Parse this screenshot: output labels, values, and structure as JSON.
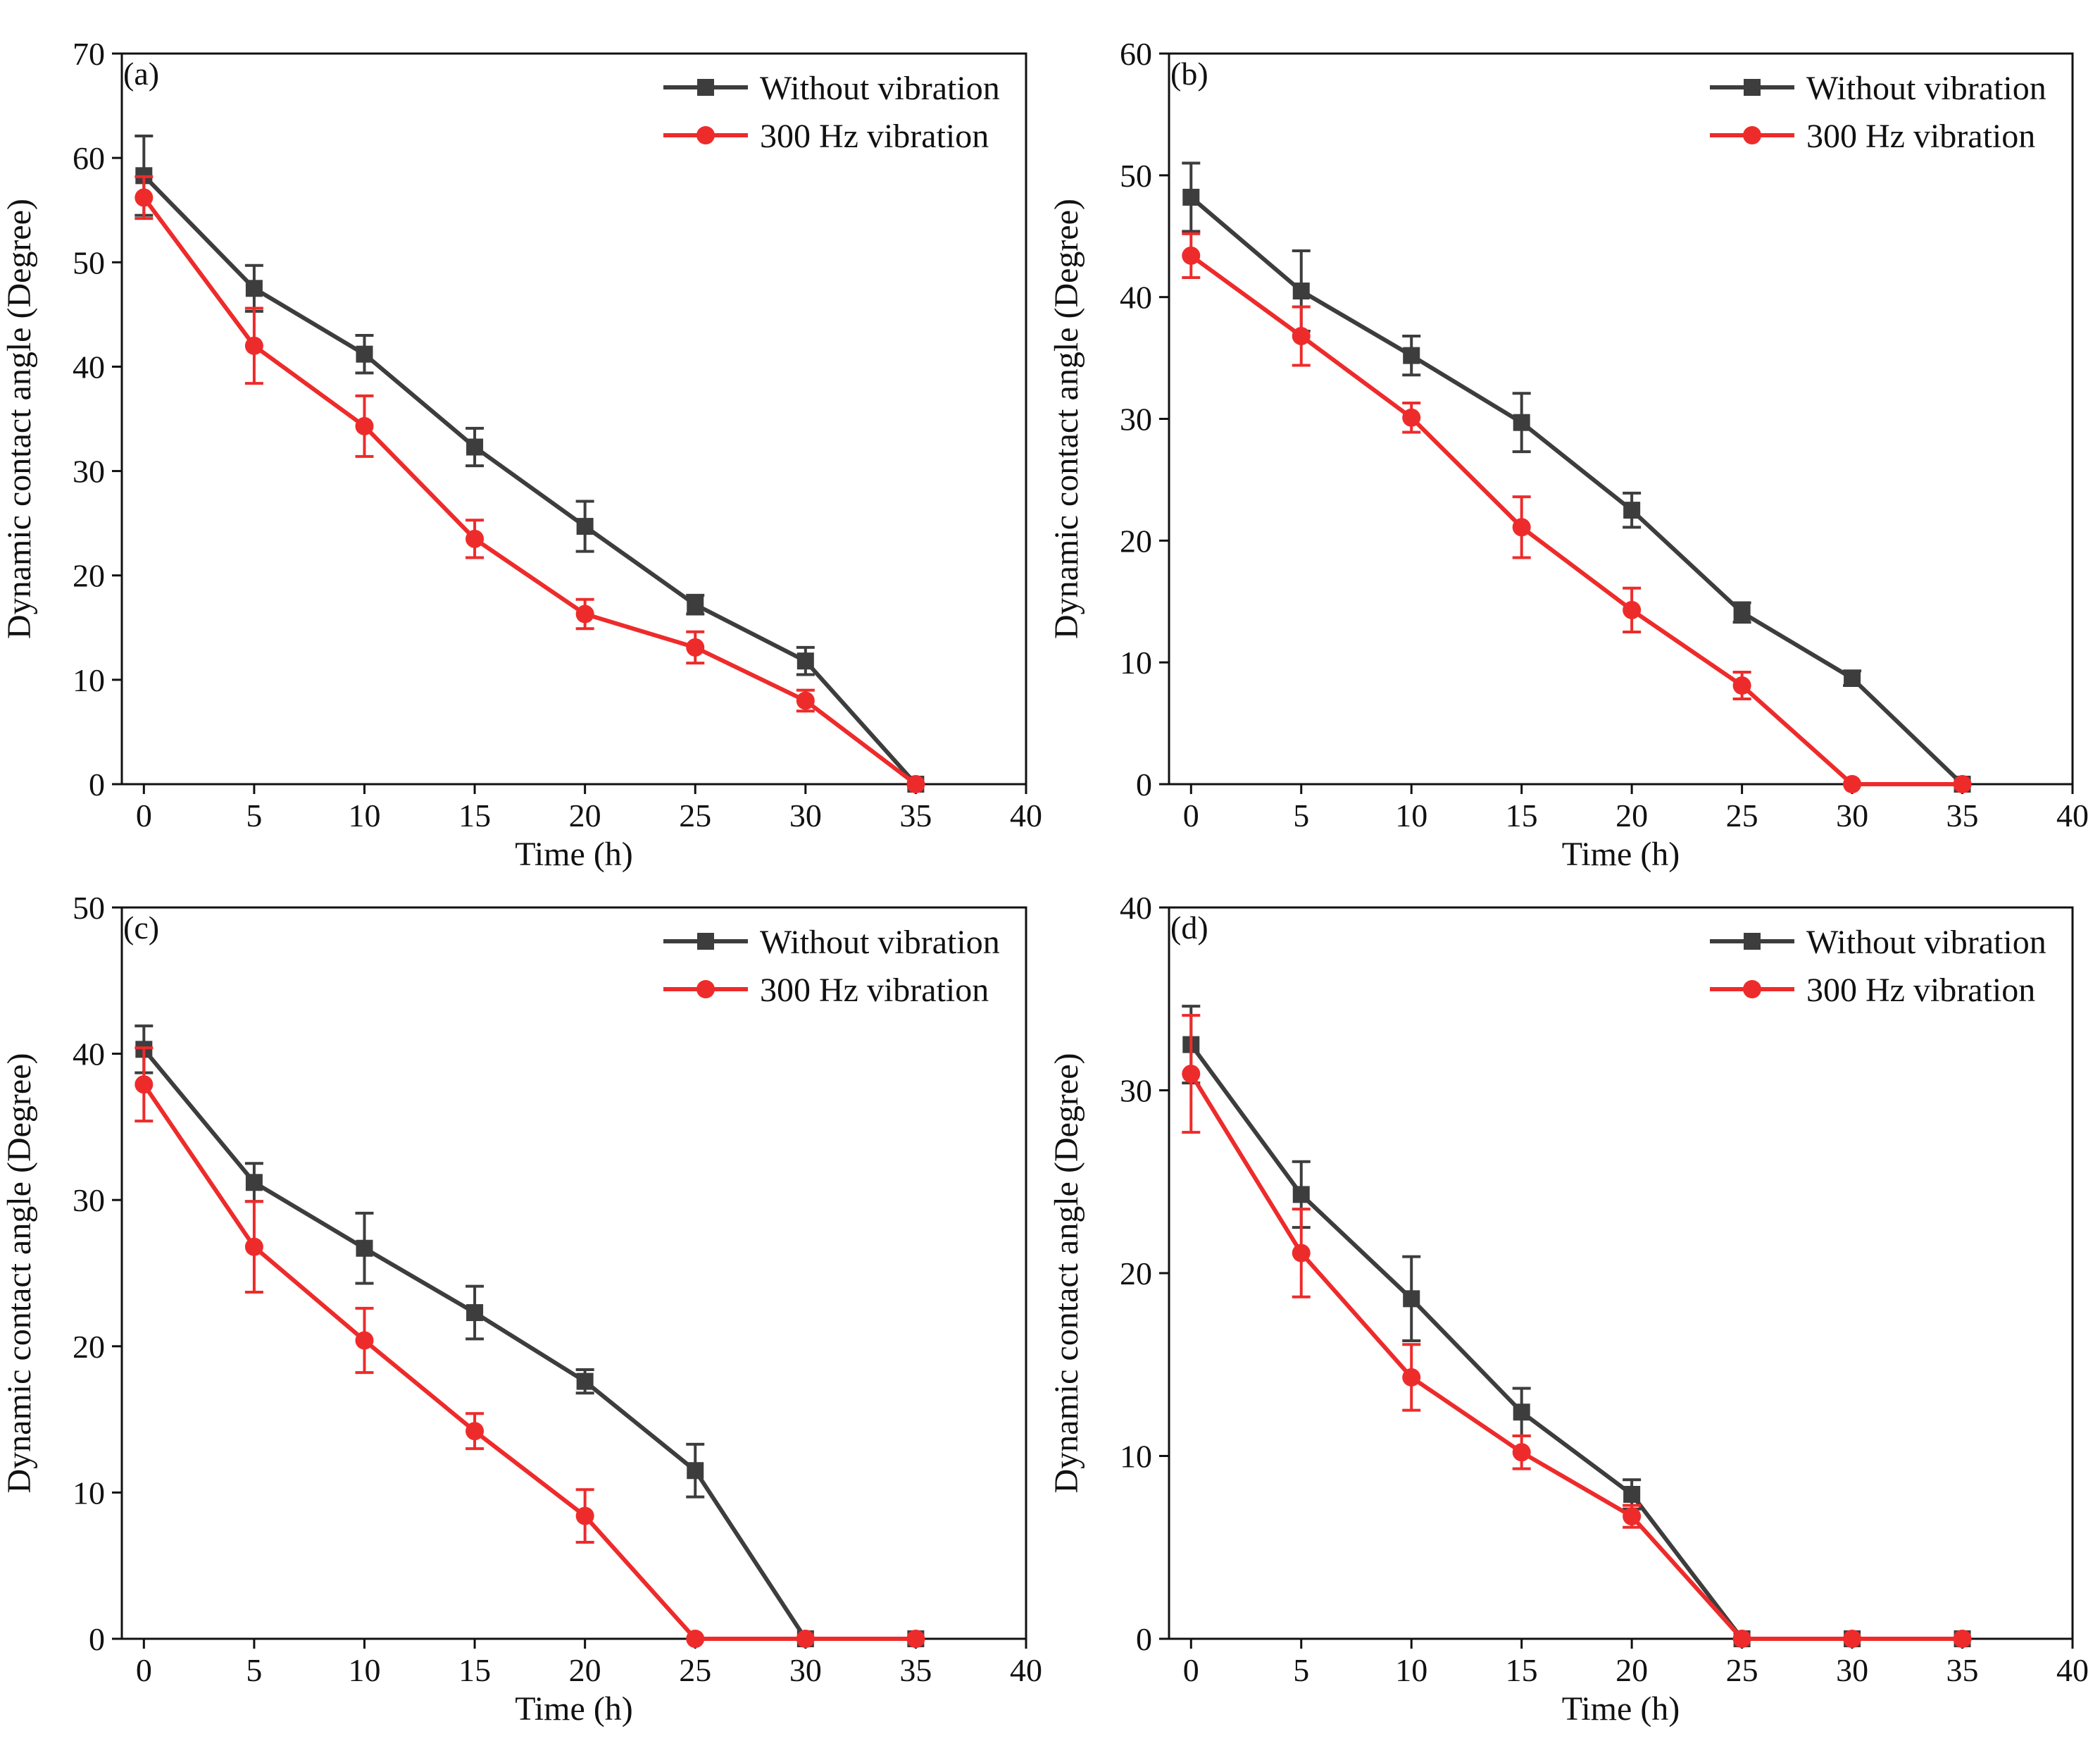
{
  "colors": {
    "without": "#3d3d3d",
    "with": "#ee2b2b",
    "axis": "#111111"
  },
  "chart_data": [
    {
      "type": "line",
      "panel_label": "(a)",
      "xlabel": "Time (h)",
      "ylabel": "Dynamic contact angle (Degree)",
      "xlim": [
        -1,
        40
      ],
      "ylim": [
        0,
        70
      ],
      "xticks": [
        0,
        5,
        10,
        15,
        20,
        25,
        30,
        35,
        40
      ],
      "yticks": [
        0,
        10,
        20,
        30,
        40,
        50,
        60,
        70
      ],
      "legend_position": "top-right",
      "series": [
        {
          "name": "Without vibration",
          "marker": "square",
          "x": [
            0,
            5,
            10,
            15,
            20,
            25,
            30,
            35
          ],
          "y": [
            58.3,
            47.5,
            41.2,
            32.3,
            24.7,
            17.2,
            11.8,
            0
          ],
          "err": [
            3.8,
            2.2,
            1.8,
            1.8,
            2.4,
            0.9,
            1.3,
            0
          ]
        },
        {
          "name": "300 Hz vibration",
          "marker": "circle",
          "x": [
            0,
            5,
            10,
            15,
            20,
            25,
            30,
            35
          ],
          "y": [
            56.2,
            42.0,
            34.3,
            23.5,
            16.3,
            13.1,
            8.0,
            0
          ],
          "err": [
            2.0,
            3.6,
            2.9,
            1.8,
            1.4,
            1.5,
            1.0,
            0
          ]
        }
      ]
    },
    {
      "type": "line",
      "panel_label": "(b)",
      "xlabel": "Time (h)",
      "ylabel": "Dynamic contact angle (Degree)",
      "xlim": [
        -1,
        40
      ],
      "ylim": [
        0,
        60
      ],
      "xticks": [
        0,
        5,
        10,
        15,
        20,
        25,
        30,
        35,
        40
      ],
      "yticks": [
        0,
        10,
        20,
        30,
        40,
        50,
        60
      ],
      "legend_position": "top-right",
      "series": [
        {
          "name": "Without vibration",
          "marker": "square",
          "x": [
            0,
            5,
            10,
            15,
            20,
            25,
            30,
            35
          ],
          "y": [
            48.2,
            40.5,
            35.2,
            29.7,
            22.5,
            14.1,
            8.7,
            0
          ],
          "err": [
            2.8,
            3.3,
            1.6,
            2.4,
            1.4,
            0.8,
            0.6,
            0
          ]
        },
        {
          "name": "300 Hz vibration",
          "marker": "circle",
          "x": [
            0,
            5,
            10,
            15,
            20,
            25,
            30,
            35
          ],
          "y": [
            43.4,
            36.8,
            30.1,
            21.1,
            14.3,
            8.1,
            0,
            0
          ],
          "err": [
            1.8,
            2.4,
            1.2,
            2.5,
            1.8,
            1.1,
            0,
            0
          ]
        }
      ]
    },
    {
      "type": "line",
      "panel_label": "(c)",
      "xlabel": "Time (h)",
      "ylabel": "Dynamic contact angle (Degree)",
      "xlim": [
        -1,
        40
      ],
      "ylim": [
        0,
        50
      ],
      "xticks": [
        0,
        5,
        10,
        15,
        20,
        25,
        30,
        35,
        40
      ],
      "yticks": [
        0,
        10,
        20,
        30,
        40,
        50
      ],
      "legend_position": "top-right",
      "series": [
        {
          "name": "Without vibration",
          "marker": "square",
          "x": [
            0,
            5,
            10,
            15,
            20,
            25,
            30,
            35
          ],
          "y": [
            40.3,
            31.2,
            26.7,
            22.3,
            17.6,
            11.5,
            0,
            0
          ],
          "err": [
            1.6,
            1.3,
            2.4,
            1.8,
            0.8,
            1.8,
            0,
            0
          ]
        },
        {
          "name": "300 Hz vibration",
          "marker": "circle",
          "x": [
            0,
            5,
            10,
            15,
            20,
            25,
            30,
            35
          ],
          "y": [
            37.9,
            26.8,
            20.4,
            14.2,
            8.4,
            0,
            0,
            0
          ],
          "err": [
            2.5,
            3.1,
            2.2,
            1.2,
            1.8,
            0,
            0,
            0
          ]
        }
      ]
    },
    {
      "type": "line",
      "panel_label": "(d)",
      "xlabel": "Time (h)",
      "ylabel": "Dynamic contact angle (Degree)",
      "xlim": [
        -1,
        40
      ],
      "ylim": [
        0,
        40
      ],
      "xticks": [
        0,
        5,
        10,
        15,
        20,
        25,
        30,
        35,
        40
      ],
      "yticks": [
        0,
        10,
        20,
        30,
        40
      ],
      "legend_position": "top-right",
      "series": [
        {
          "name": "Without vibration",
          "marker": "square",
          "x": [
            0,
            5,
            10,
            15,
            20,
            25,
            30,
            35
          ],
          "y": [
            32.5,
            24.3,
            18.6,
            12.4,
            7.9,
            0,
            0,
            0
          ],
          "err": [
            2.1,
            1.8,
            2.3,
            1.3,
            0.8,
            0,
            0,
            0
          ]
        },
        {
          "name": "300 Hz vibration",
          "marker": "circle",
          "x": [
            0,
            5,
            10,
            15,
            20,
            25,
            30,
            35
          ],
          "y": [
            30.9,
            21.1,
            14.3,
            10.2,
            6.7,
            0,
            0,
            0
          ],
          "err": [
            3.2,
            2.4,
            1.8,
            0.9,
            0.6,
            0,
            0,
            0
          ]
        }
      ]
    }
  ]
}
